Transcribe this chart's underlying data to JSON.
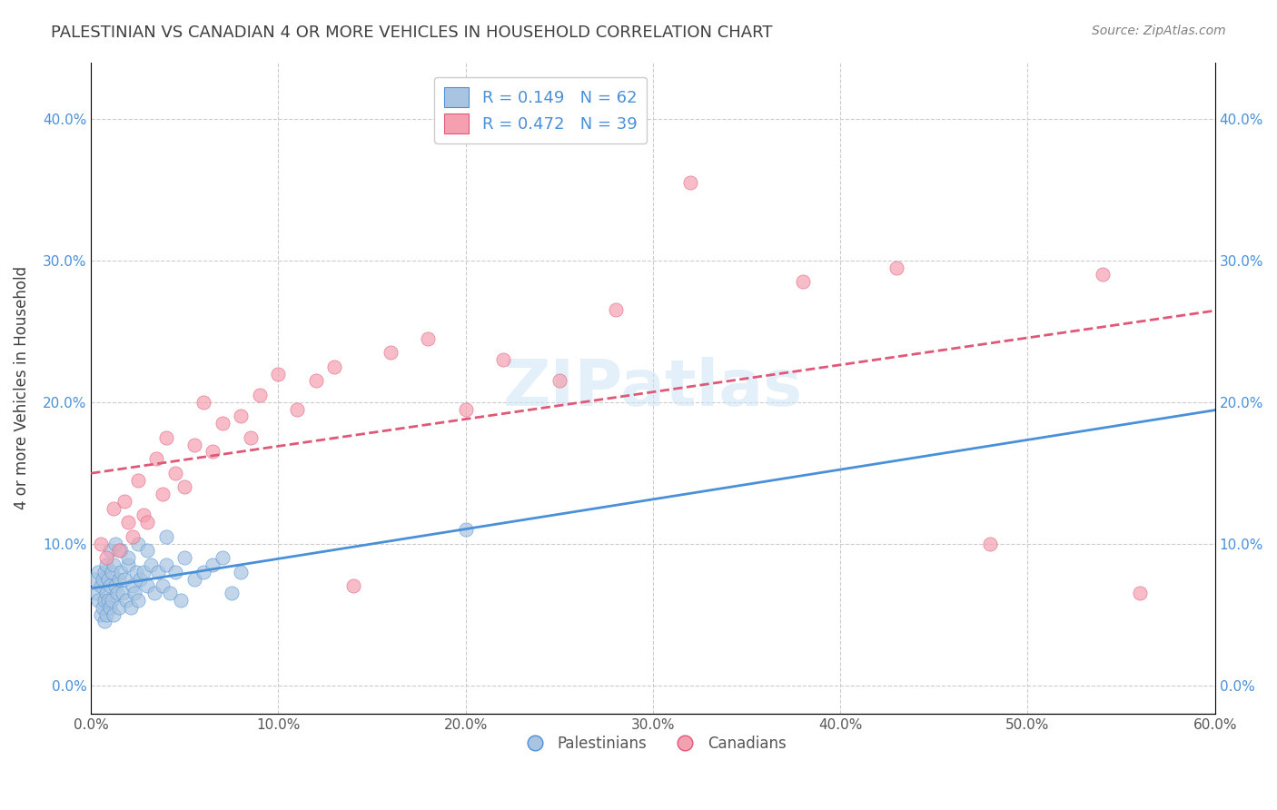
{
  "title": "PALESTINIAN VS CANADIAN 4 OR MORE VEHICLES IN HOUSEHOLD CORRELATION CHART",
  "source": "Source: ZipAtlas.com",
  "ylabel": "4 or more Vehicles in Household",
  "xlim": [
    0.0,
    0.6
  ],
  "ylim": [
    -0.02,
    0.44
  ],
  "yticks": [
    0.0,
    0.1,
    0.2,
    0.3,
    0.4
  ],
  "xticks": [
    0.0,
    0.1,
    0.2,
    0.3,
    0.4,
    0.5,
    0.6
  ],
  "legend_labels": [
    "Palestinians",
    "Canadians"
  ],
  "r_palestinian": 0.149,
  "n_palestinian": 62,
  "r_canadian": 0.472,
  "n_canadian": 39,
  "watermark": "ZIPatlas",
  "blue_color": "#a8c4e0",
  "pink_color": "#f4a0b0",
  "blue_line_color": "#4a90d9",
  "pink_line_color": "#e05878",
  "title_color": "#404040",
  "source_color": "#808080",
  "palestinians_x": [
    0.002,
    0.003,
    0.004,
    0.004,
    0.005,
    0.005,
    0.006,
    0.006,
    0.007,
    0.007,
    0.007,
    0.008,
    0.008,
    0.008,
    0.009,
    0.009,
    0.01,
    0.01,
    0.011,
    0.011,
    0.012,
    0.012,
    0.013,
    0.014,
    0.015,
    0.015,
    0.016,
    0.017,
    0.018,
    0.019,
    0.02,
    0.021,
    0.022,
    0.023,
    0.024,
    0.025,
    0.026,
    0.028,
    0.03,
    0.032,
    0.034,
    0.036,
    0.038,
    0.04,
    0.042,
    0.045,
    0.048,
    0.05,
    0.055,
    0.06,
    0.065,
    0.07,
    0.075,
    0.08,
    0.01,
    0.013,
    0.016,
    0.02,
    0.025,
    0.03,
    0.04,
    0.2
  ],
  "palestinians_y": [
    0.075,
    0.065,
    0.08,
    0.06,
    0.07,
    0.05,
    0.075,
    0.055,
    0.08,
    0.06,
    0.045,
    0.085,
    0.065,
    0.05,
    0.075,
    0.06,
    0.07,
    0.055,
    0.08,
    0.06,
    0.085,
    0.05,
    0.07,
    0.065,
    0.075,
    0.055,
    0.08,
    0.065,
    0.075,
    0.06,
    0.085,
    0.055,
    0.07,
    0.065,
    0.08,
    0.06,
    0.075,
    0.08,
    0.07,
    0.085,
    0.065,
    0.08,
    0.07,
    0.085,
    0.065,
    0.08,
    0.06,
    0.09,
    0.075,
    0.08,
    0.085,
    0.09,
    0.065,
    0.08,
    0.095,
    0.1,
    0.095,
    0.09,
    0.1,
    0.095,
    0.105,
    0.11
  ],
  "canadians_x": [
    0.005,
    0.008,
    0.012,
    0.015,
    0.018,
    0.02,
    0.022,
    0.025,
    0.028,
    0.03,
    0.035,
    0.038,
    0.04,
    0.045,
    0.05,
    0.055,
    0.06,
    0.065,
    0.07,
    0.08,
    0.085,
    0.09,
    0.1,
    0.11,
    0.12,
    0.13,
    0.14,
    0.16,
    0.18,
    0.2,
    0.22,
    0.25,
    0.28,
    0.32,
    0.38,
    0.43,
    0.48,
    0.54,
    0.56
  ],
  "canadians_y": [
    0.1,
    0.09,
    0.125,
    0.095,
    0.13,
    0.115,
    0.105,
    0.145,
    0.12,
    0.115,
    0.16,
    0.135,
    0.175,
    0.15,
    0.14,
    0.17,
    0.2,
    0.165,
    0.185,
    0.19,
    0.175,
    0.205,
    0.22,
    0.195,
    0.215,
    0.225,
    0.07,
    0.235,
    0.245,
    0.195,
    0.23,
    0.215,
    0.265,
    0.355,
    0.285,
    0.295,
    0.1,
    0.29,
    0.065
  ]
}
